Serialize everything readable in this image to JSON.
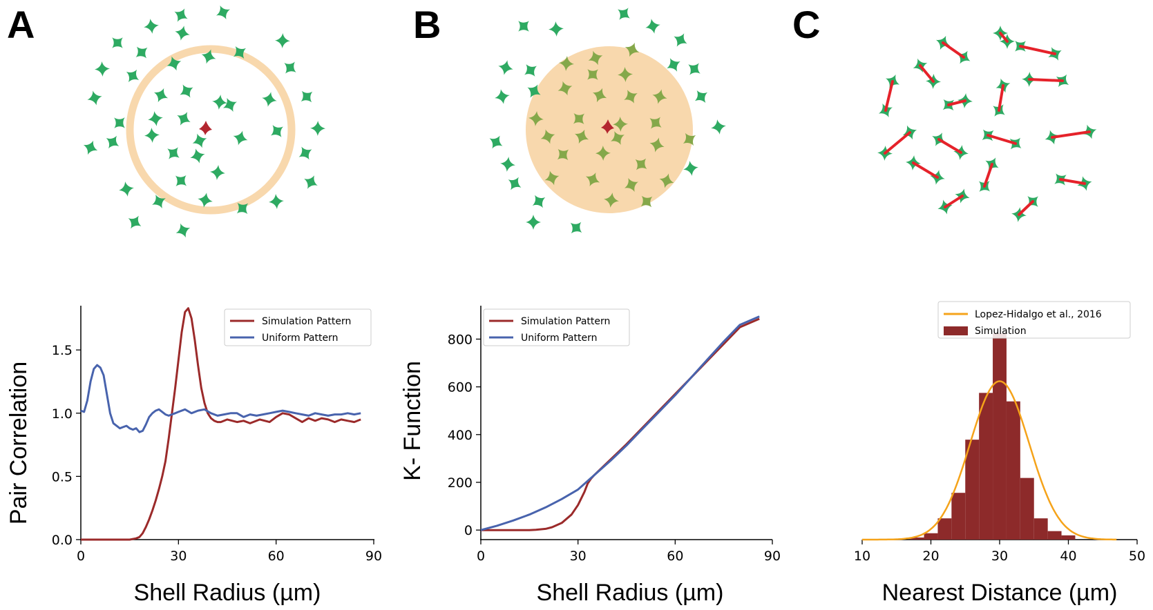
{
  "panels": [
    {
      "letter": "A"
    },
    {
      "letter": "B"
    },
    {
      "letter": "C"
    }
  ],
  "colors": {
    "cell": "#2eaa62",
    "center_cell": "#b3262f",
    "shell": "#f8d8ad",
    "connector": "#e5222a",
    "sim_line": "#9b2a2a",
    "uniform_line": "#4863ad",
    "fit_line": "#f5a31a",
    "hist_fill": "#8d2a2a"
  },
  "chart_data": [
    {
      "type": "line",
      "title": "",
      "xlabel": "Shell Radius (µm)",
      "ylabel": "Pair Correlation",
      "xlim": [
        0,
        90
      ],
      "ylim": [
        0,
        1.85
      ],
      "xticks": [
        "0",
        "30",
        "60",
        "90"
      ],
      "yticks": [
        "0.0",
        "0.5",
        "1.0",
        "1.5"
      ],
      "grid": false,
      "legend_position": "top-right",
      "series": [
        {
          "name": "Simulation Pattern",
          "color": "#9b2a2a",
          "x": [
            0,
            5,
            10,
            15,
            17,
            18,
            19,
            20,
            21,
            22,
            23,
            24,
            25,
            26,
            27,
            28,
            29,
            30,
            31,
            32,
            33,
            34,
            35,
            36,
            37,
            38,
            39,
            40,
            41,
            42,
            43,
            45,
            48,
            50,
            52,
            55,
            58,
            60,
            62,
            64,
            66,
            68,
            70,
            72,
            74,
            76,
            78,
            80,
            82,
            84,
            86
          ],
          "y": [
            0,
            0,
            0,
            0,
            0.01,
            0.02,
            0.05,
            0.1,
            0.16,
            0.23,
            0.31,
            0.4,
            0.5,
            0.62,
            0.8,
            1.0,
            1.2,
            1.42,
            1.64,
            1.8,
            1.83,
            1.75,
            1.58,
            1.38,
            1.2,
            1.08,
            1.0,
            0.96,
            0.94,
            0.93,
            0.93,
            0.95,
            0.93,
            0.94,
            0.92,
            0.95,
            0.93,
            0.97,
            1.0,
            0.99,
            0.96,
            0.93,
            0.96,
            0.94,
            0.96,
            0.95,
            0.93,
            0.95,
            0.94,
            0.93,
            0.95
          ]
        },
        {
          "name": "Uniform Pattern",
          "color": "#4863ad",
          "x": [
            0,
            1,
            2,
            3,
            4,
            5,
            6,
            7,
            8,
            9,
            10,
            11,
            12,
            13,
            14,
            15,
            16,
            17,
            18,
            19,
            20,
            21,
            22,
            23,
            24,
            25,
            26,
            27,
            28,
            29,
            30,
            32,
            34,
            36,
            38,
            40,
            42,
            44,
            46,
            48,
            50,
            52,
            54,
            56,
            58,
            60,
            62,
            64,
            66,
            68,
            70,
            72,
            74,
            76,
            78,
            80,
            82,
            84,
            86
          ],
          "y": [
            1.02,
            1.01,
            1.1,
            1.25,
            1.35,
            1.38,
            1.36,
            1.3,
            1.15,
            1.0,
            0.92,
            0.9,
            0.88,
            0.89,
            0.9,
            0.88,
            0.87,
            0.88,
            0.85,
            0.86,
            0.91,
            0.97,
            1.0,
            1.02,
            1.03,
            1.01,
            0.99,
            0.98,
            0.99,
            1.0,
            1.01,
            1.03,
            1.0,
            1.02,
            1.03,
            1.0,
            0.98,
            0.99,
            1.0,
            1.0,
            0.97,
            0.99,
            0.98,
            0.99,
            1.0,
            1.01,
            1.02,
            1.01,
            1.0,
            0.99,
            0.98,
            1.0,
            0.99,
            0.98,
            0.99,
            0.99,
            1.0,
            0.99,
            1.0
          ]
        }
      ]
    },
    {
      "type": "line",
      "title": "",
      "xlabel": "Shell Radius (µm)",
      "ylabel": "K- Function",
      "xlim": [
        0,
        90
      ],
      "ylim": [
        -40,
        940
      ],
      "xticks": [
        "0",
        "30",
        "60",
        "90"
      ],
      "yticks": [
        "0",
        "200",
        "400",
        "600",
        "800"
      ],
      "grid": false,
      "legend_position": "top-left",
      "series": [
        {
          "name": "Simulation Pattern",
          "color": "#9b2a2a",
          "x": [
            0,
            5,
            10,
            15,
            17,
            20,
            22,
            25,
            28,
            30,
            32,
            33,
            34,
            35,
            40,
            45,
            50,
            55,
            60,
            65,
            70,
            75,
            80,
            86
          ],
          "y": [
            0,
            0,
            0,
            0,
            1,
            5,
            12,
            30,
            65,
            105,
            160,
            195,
            215,
            230,
            295,
            360,
            430,
            500,
            570,
            640,
            710,
            780,
            850,
            885
          ]
        },
        {
          "name": "Uniform Pattern",
          "color": "#4863ad",
          "x": [
            0,
            5,
            10,
            15,
            20,
            25,
            30,
            35,
            40,
            45,
            50,
            55,
            60,
            65,
            70,
            75,
            80,
            86
          ],
          "y": [
            0,
            18,
            40,
            65,
            95,
            130,
            170,
            230,
            290,
            355,
            425,
            495,
            565,
            640,
            715,
            790,
            860,
            895
          ]
        }
      ]
    },
    {
      "type": "bar",
      "title": "",
      "xlabel": "Nearest Distance (µm)",
      "ylabel": "",
      "xlim": [
        10,
        50
      ],
      "ylim": [
        0,
        1.1
      ],
      "xticks": [
        "10",
        "20",
        "30",
        "40",
        "50"
      ],
      "grid": false,
      "legend_position": "top-right",
      "histogram": {
        "name": "Simulation",
        "bin_edges": [
          17,
          19,
          21,
          23,
          25,
          27,
          29,
          31,
          33,
          35,
          37,
          39,
          41
        ],
        "values": [
          0.01,
          0.03,
          0.1,
          0.22,
          0.47,
          0.69,
          0.97,
          0.65,
          0.29,
          0.1,
          0.04,
          0.02
        ]
      },
      "fit": {
        "name": "Lopez-Hidalgo et al., 2016",
        "mean": 30,
        "sd": 4.3,
        "peak": 0.745,
        "x_range": [
          10,
          47
        ]
      }
    }
  ]
}
